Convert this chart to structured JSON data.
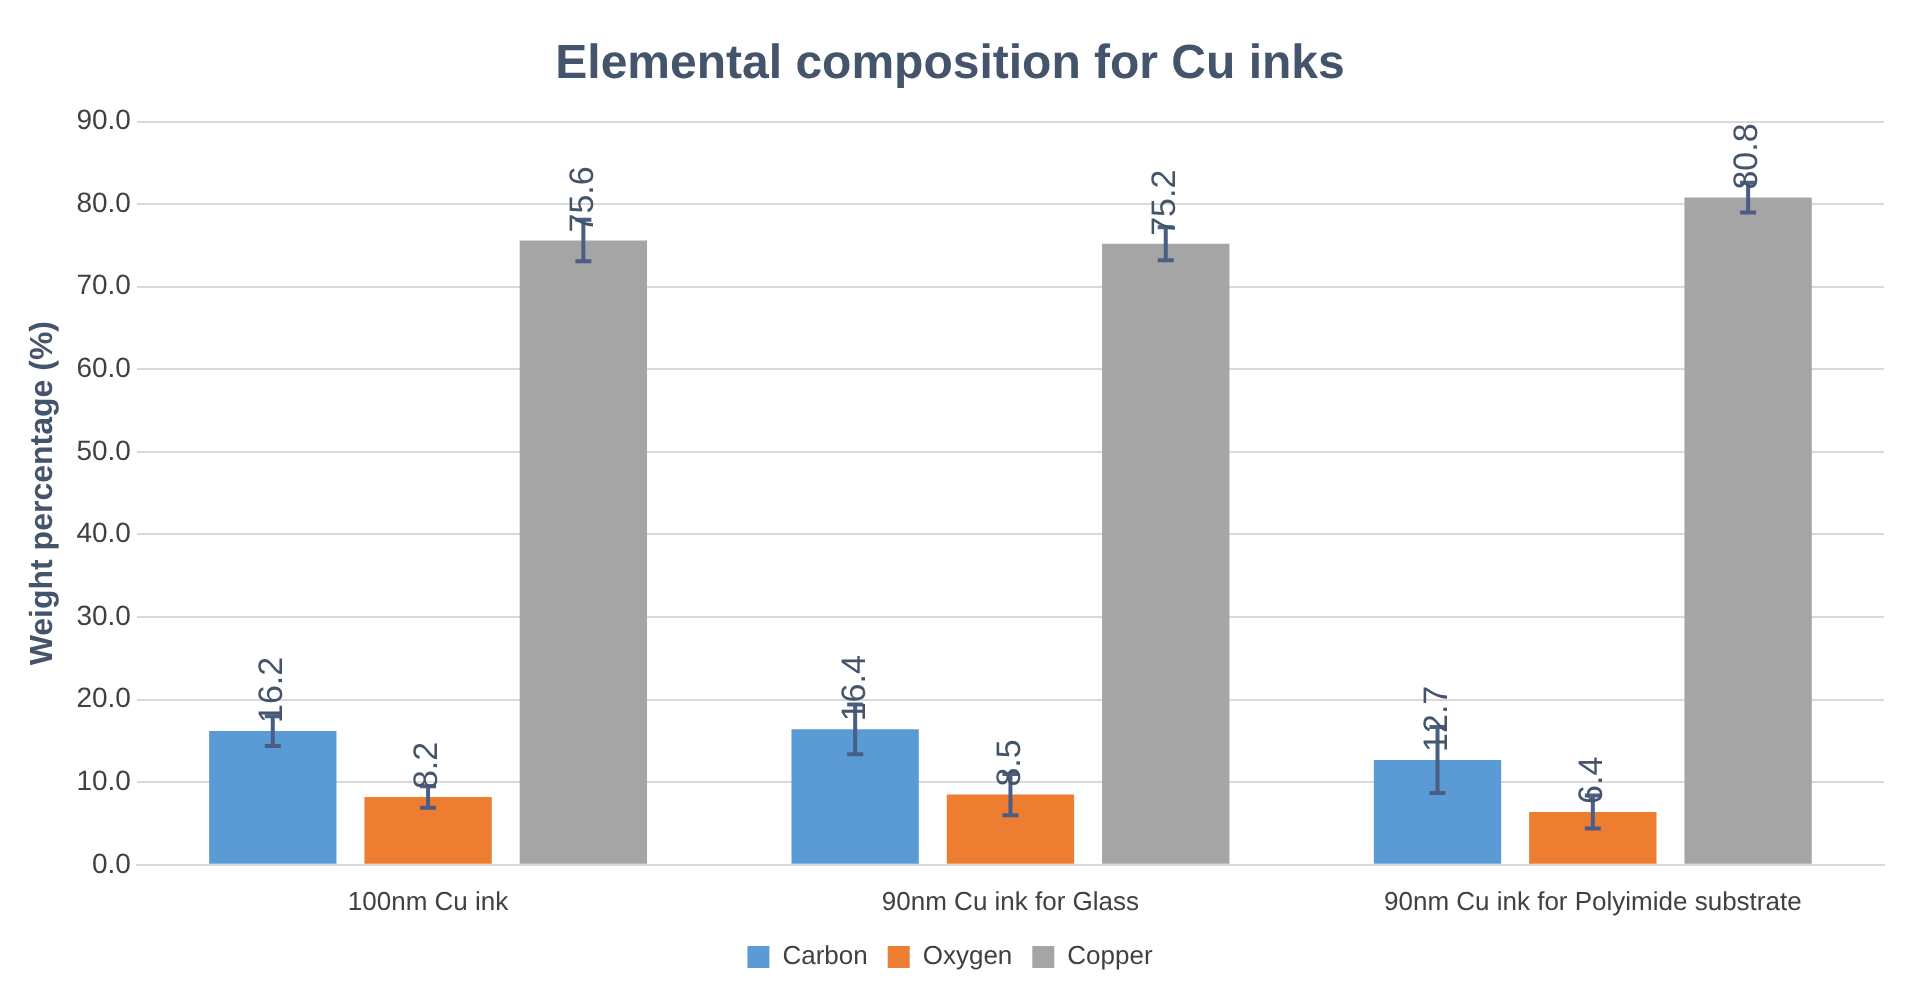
{
  "chart_data": {
    "type": "bar",
    "title": "Elemental composition for Cu inks",
    "ylabel": "Weight percentage (%)",
    "categories": [
      "100nm Cu ink",
      "90nm Cu ink for Glass",
      "90nm Cu ink for Polyimide substrate"
    ],
    "series": [
      {
        "name": "Carbon",
        "color": "#5b9bd5",
        "values": [
          16.2,
          16.4,
          12.7
        ],
        "errors": [
          1.8,
          3,
          4
        ]
      },
      {
        "name": "Oxygen",
        "color": "#ed7d31",
        "values": [
          8.2,
          8.5,
          6.4
        ],
        "errors": [
          1.3,
          2.5,
          2
        ]
      },
      {
        "name": "Copper",
        "color": "#a5a5a5",
        "values": [
          75.6,
          75.2,
          80.8
        ],
        "errors": [
          2.5,
          2,
          1.8
        ]
      }
    ],
    "ylim": [
      0,
      90
    ],
    "yticks": [
      {
        "value": 0,
        "label": "0.0"
      },
      {
        "value": 10,
        "label": "10.0"
      },
      {
        "value": 20,
        "label": "20.0"
      },
      {
        "value": 30,
        "label": "30.0"
      },
      {
        "value": 40,
        "label": "40.0"
      },
      {
        "value": 50,
        "label": "50.0"
      },
      {
        "value": 60,
        "label": "60.0"
      },
      {
        "value": 70,
        "label": "70.0"
      },
      {
        "value": 80,
        "label": "80.0"
      },
      {
        "value": 90,
        "label": "90.0"
      }
    ],
    "grid": "y",
    "legend": "bottom",
    "data_labels": true
  }
}
